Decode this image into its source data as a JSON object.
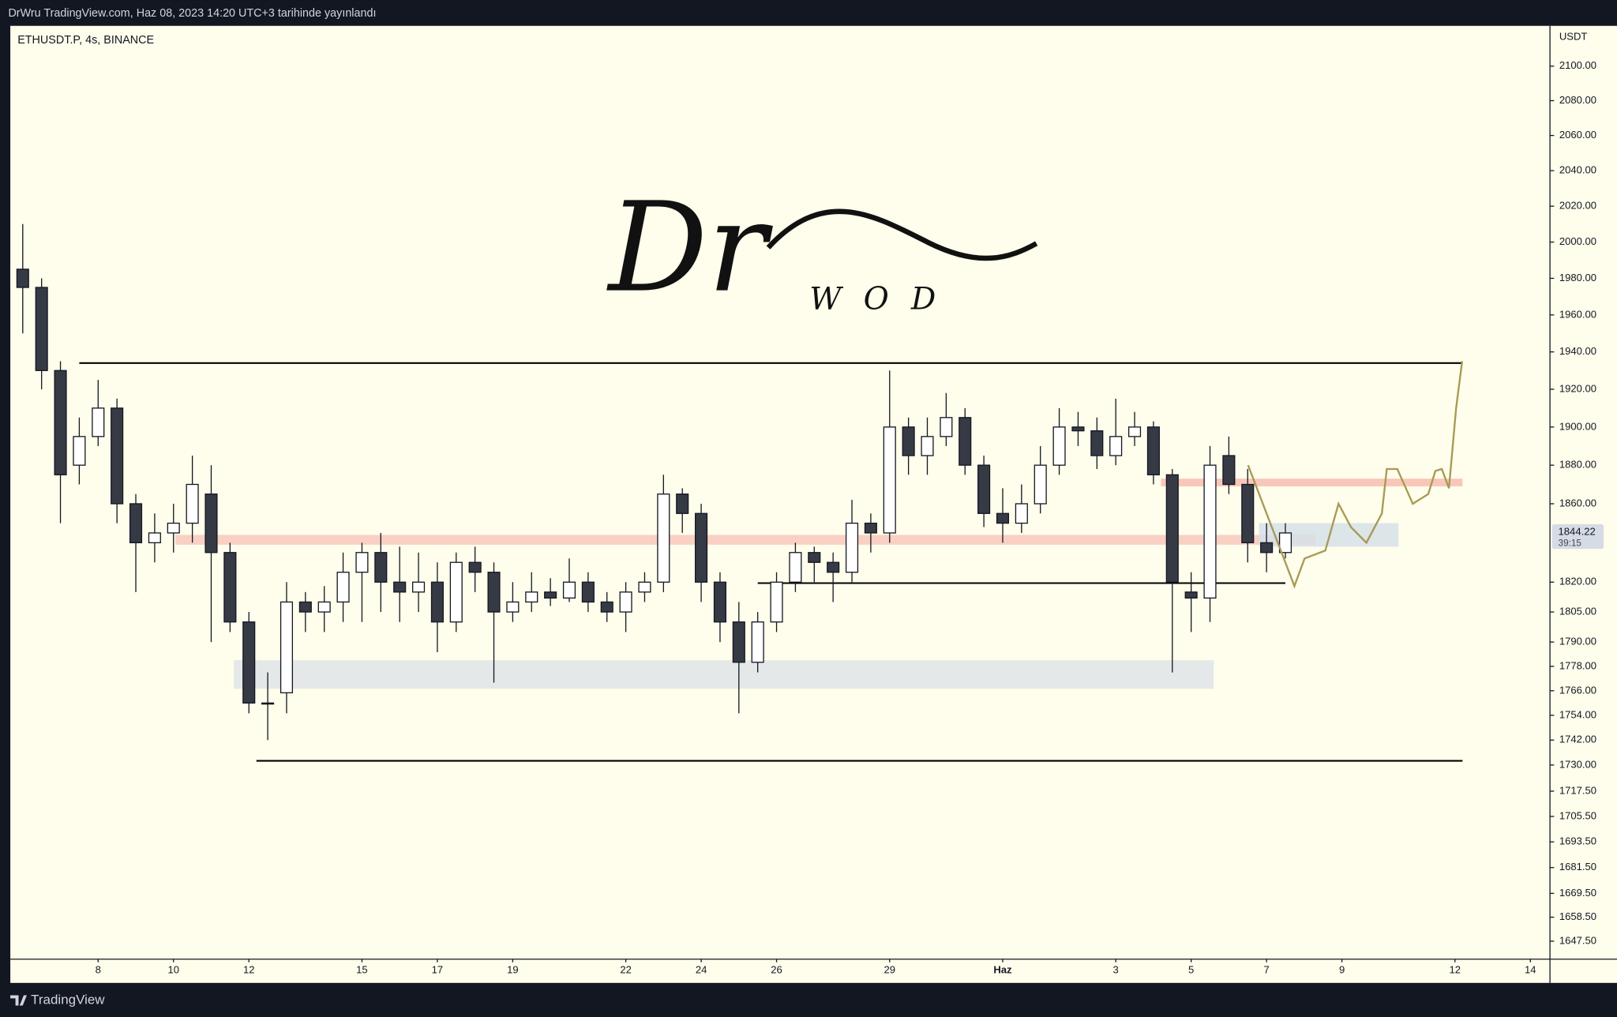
{
  "header": "DrWru TradingView.com, Haz 08, 2023 14:20 UTC+3 tarihinde yayınlandı",
  "footer": "TradingView",
  "chart_data": {
    "type": "candlestick",
    "title": "ETHUSDT.P, 4s, BINANCE",
    "currency": "USDT",
    "watermark": [
      "Dr",
      "W O D"
    ],
    "log_scale": true,
    "background": "#fffdeb",
    "up_color": "#ffffff",
    "down_color": "#363a45",
    "xlim": [
      5.67,
      46.52
    ],
    "xticks": [
      8,
      10,
      12,
      15,
      17,
      19,
      22,
      24,
      26,
      29,
      {
        "value": 32,
        "label": "Haz"
      },
      {
        "value": 35,
        "label": "3"
      },
      {
        "value": 37,
        "label": "5"
      },
      {
        "value": 39,
        "label": "7"
      },
      {
        "value": 41,
        "label": "9"
      },
      {
        "value": 44,
        "label": "12"
      },
      {
        "value": 46,
        "label": "14"
      }
    ],
    "ylim": [
      1639.3,
      2123.6
    ],
    "yticks": [
      {
        "value": 2100,
        "label": "2100.00"
      },
      {
        "value": 2080,
        "label": "2080.00"
      },
      {
        "value": 2060,
        "label": "2060.00"
      },
      {
        "value": 2040,
        "label": "2040.00"
      },
      {
        "value": 2020,
        "label": "2020.00"
      },
      {
        "value": 2000,
        "label": "2000.00"
      },
      {
        "value": 1980,
        "label": "1980.00"
      },
      {
        "value": 1960,
        "label": "1960.00"
      },
      {
        "value": 1940,
        "label": "1940.00"
      },
      {
        "value": 1920,
        "label": "1920.00"
      },
      {
        "value": 1900,
        "label": "1900.00"
      },
      {
        "value": 1880,
        "label": "1880.00"
      },
      {
        "value": 1860,
        "label": "1860.00"
      },
      {
        "value": 1820,
        "label": "1820.00"
      },
      {
        "value": 1805,
        "label": "1805.00"
      },
      {
        "value": 1790,
        "label": "1790.00"
      },
      {
        "value": 1778,
        "label": "1778.00"
      },
      {
        "value": 1766,
        "label": "1766.00"
      },
      {
        "value": 1754,
        "label": "1754.00"
      },
      {
        "value": 1742,
        "label": "1742.00"
      },
      {
        "value": 1730,
        "label": "1730.00"
      },
      {
        "value": 1717.5,
        "label": "1717.50"
      },
      {
        "value": 1705.5,
        "label": "1705.50"
      },
      {
        "value": 1693.5,
        "label": "1693.50"
      },
      {
        "value": 1681.5,
        "label": "1681.50"
      },
      {
        "value": 1669.5,
        "label": "1669.50"
      },
      {
        "value": 1658.5,
        "label": "1658.50"
      },
      {
        "value": 1647.5,
        "label": "1647.50"
      }
    ],
    "last_price": 1844.22,
    "countdown": "39:15",
    "x": [
      6.0,
      6.5,
      7.0,
      7.5,
      8.0,
      8.5,
      9.0,
      9.5,
      10.0,
      10.5,
      11.0,
      11.5,
      12.0,
      12.5,
      13.0,
      13.5,
      14.0,
      14.5,
      15.0,
      15.5,
      16.0,
      16.5,
      17.0,
      17.5,
      18.0,
      18.5,
      19.0,
      19.5,
      20.0,
      20.5,
      21.0,
      21.5,
      22.0,
      22.5,
      23.0,
      23.5,
      24.0,
      24.5,
      25.0,
      25.5,
      26.0,
      26.5,
      27.0,
      27.5,
      28.0,
      28.5,
      29.0,
      29.5,
      30.0,
      30.5,
      31.0,
      31.5,
      32.0,
      32.5,
      33.0,
      33.5,
      34.0,
      34.5,
      35.0,
      35.5,
      36.0,
      36.5,
      37.0,
      37.5,
      38.0,
      38.5,
      39.0,
      39.5
    ],
    "open": [
      1985,
      1975,
      1930,
      1880,
      1895,
      1910,
      1860,
      1840,
      1845,
      1850,
      1865,
      1835,
      1800,
      1760,
      1765,
      1810,
      1805,
      1810,
      1825,
      1835,
      1820,
      1815,
      1820,
      1800,
      1830,
      1825,
      1805,
      1810,
      1815,
      1812,
      1820,
      1810,
      1805,
      1815,
      1820,
      1865,
      1855,
      1820,
      1800,
      1780,
      1800,
      1820,
      1835,
      1830,
      1825,
      1850,
      1845,
      1900,
      1885,
      1895,
      1905,
      1880,
      1855,
      1850,
      1860,
      1880,
      1900,
      1898,
      1885,
      1895,
      1900,
      1875,
      1815,
      1812,
      1885,
      1870,
      1840,
      1835
    ],
    "high": [
      2010,
      1980,
      1935,
      1905,
      1925,
      1915,
      1865,
      1855,
      1860,
      1885,
      1880,
      1840,
      1805,
      1775,
      1820,
      1815,
      1818,
      1835,
      1840,
      1845,
      1838,
      1835,
      1830,
      1835,
      1838,
      1830,
      1820,
      1825,
      1822,
      1832,
      1825,
      1815,
      1820,
      1825,
      1875,
      1868,
      1860,
      1825,
      1810,
      1805,
      1825,
      1840,
      1838,
      1835,
      1862,
      1855,
      1930,
      1905,
      1905,
      1918,
      1910,
      1885,
      1868,
      1870,
      1890,
      1910,
      1908,
      1905,
      1915,
      1908,
      1903,
      1878,
      1825,
      1890,
      1895,
      1878,
      1850,
      1850
    ],
    "low": [
      1950,
      1920,
      1850,
      1870,
      1890,
      1850,
      1815,
      1830,
      1835,
      1840,
      1790,
      1795,
      1755,
      1742,
      1755,
      1795,
      1795,
      1800,
      1800,
      1805,
      1800,
      1805,
      1785,
      1795,
      1815,
      1770,
      1800,
      1805,
      1808,
      1810,
      1805,
      1800,
      1795,
      1810,
      1815,
      1845,
      1810,
      1790,
      1755,
      1775,
      1795,
      1815,
      1820,
      1810,
      1820,
      1835,
      1840,
      1875,
      1875,
      1890,
      1875,
      1848,
      1840,
      1845,
      1855,
      1875,
      1890,
      1878,
      1880,
      1890,
      1870,
      1775,
      1795,
      1800,
      1865,
      1830,
      1825,
      1832
    ],
    "close": [
      1975,
      1930,
      1875,
      1895,
      1910,
      1860,
      1840,
      1845,
      1850,
      1870,
      1835,
      1800,
      1760,
      1760,
      1810,
      1805,
      1810,
      1825,
      1835,
      1820,
      1815,
      1820,
      1800,
      1830,
      1825,
      1805,
      1810,
      1815,
      1812,
      1820,
      1810,
      1805,
      1815,
      1820,
      1865,
      1855,
      1820,
      1800,
      1780,
      1800,
      1820,
      1835,
      1830,
      1825,
      1850,
      1845,
      1900,
      1885,
      1895,
      1905,
      1880,
      1855,
      1850,
      1860,
      1880,
      1900,
      1898,
      1885,
      1895,
      1900,
      1875,
      1820,
      1812,
      1880,
      1870,
      1840,
      1835,
      1845
    ],
    "levels": [
      {
        "x": [
          7.5,
          44.2
        ],
        "value": 1934,
        "color": "#000000"
      },
      {
        "x": [
          12.2,
          44.2
        ],
        "value": 1732,
        "color": "#000000"
      },
      {
        "x": [
          25.5,
          39.5
        ],
        "value": 1819.5,
        "color": "#000000"
      }
    ],
    "zones": [
      {
        "x": [
          10.05,
          40.3
        ],
        "y": [
          1839,
          1844
        ],
        "color": "#f8c8bd"
      },
      {
        "x": [
          36.2,
          44.2
        ],
        "y": [
          1869,
          1873
        ],
        "color": "#f8bdb0"
      },
      {
        "x": [
          11.6,
          37.6
        ],
        "y": [
          1767,
          1781
        ],
        "color": "#dfe4e8"
      },
      {
        "x": [
          38.8,
          42.5
        ],
        "y": [
          1838,
          1850
        ],
        "color": "#d6e1e8"
      }
    ],
    "forecast": {
      "color": "#a89a55",
      "x": [
        38.51,
        39.74,
        40.01,
        40.56,
        40.91,
        41.24,
        41.65,
        42.06,
        42.19,
        42.47,
        42.88,
        43.29,
        43.48,
        43.65,
        43.84,
        44.03,
        44.19
      ],
      "values": [
        1880,
        1818,
        1832,
        1836,
        1860,
        1848,
        1840,
        1855,
        1878,
        1878,
        1860,
        1865,
        1877,
        1878,
        1868,
        1910,
        1935
      ]
    }
  }
}
